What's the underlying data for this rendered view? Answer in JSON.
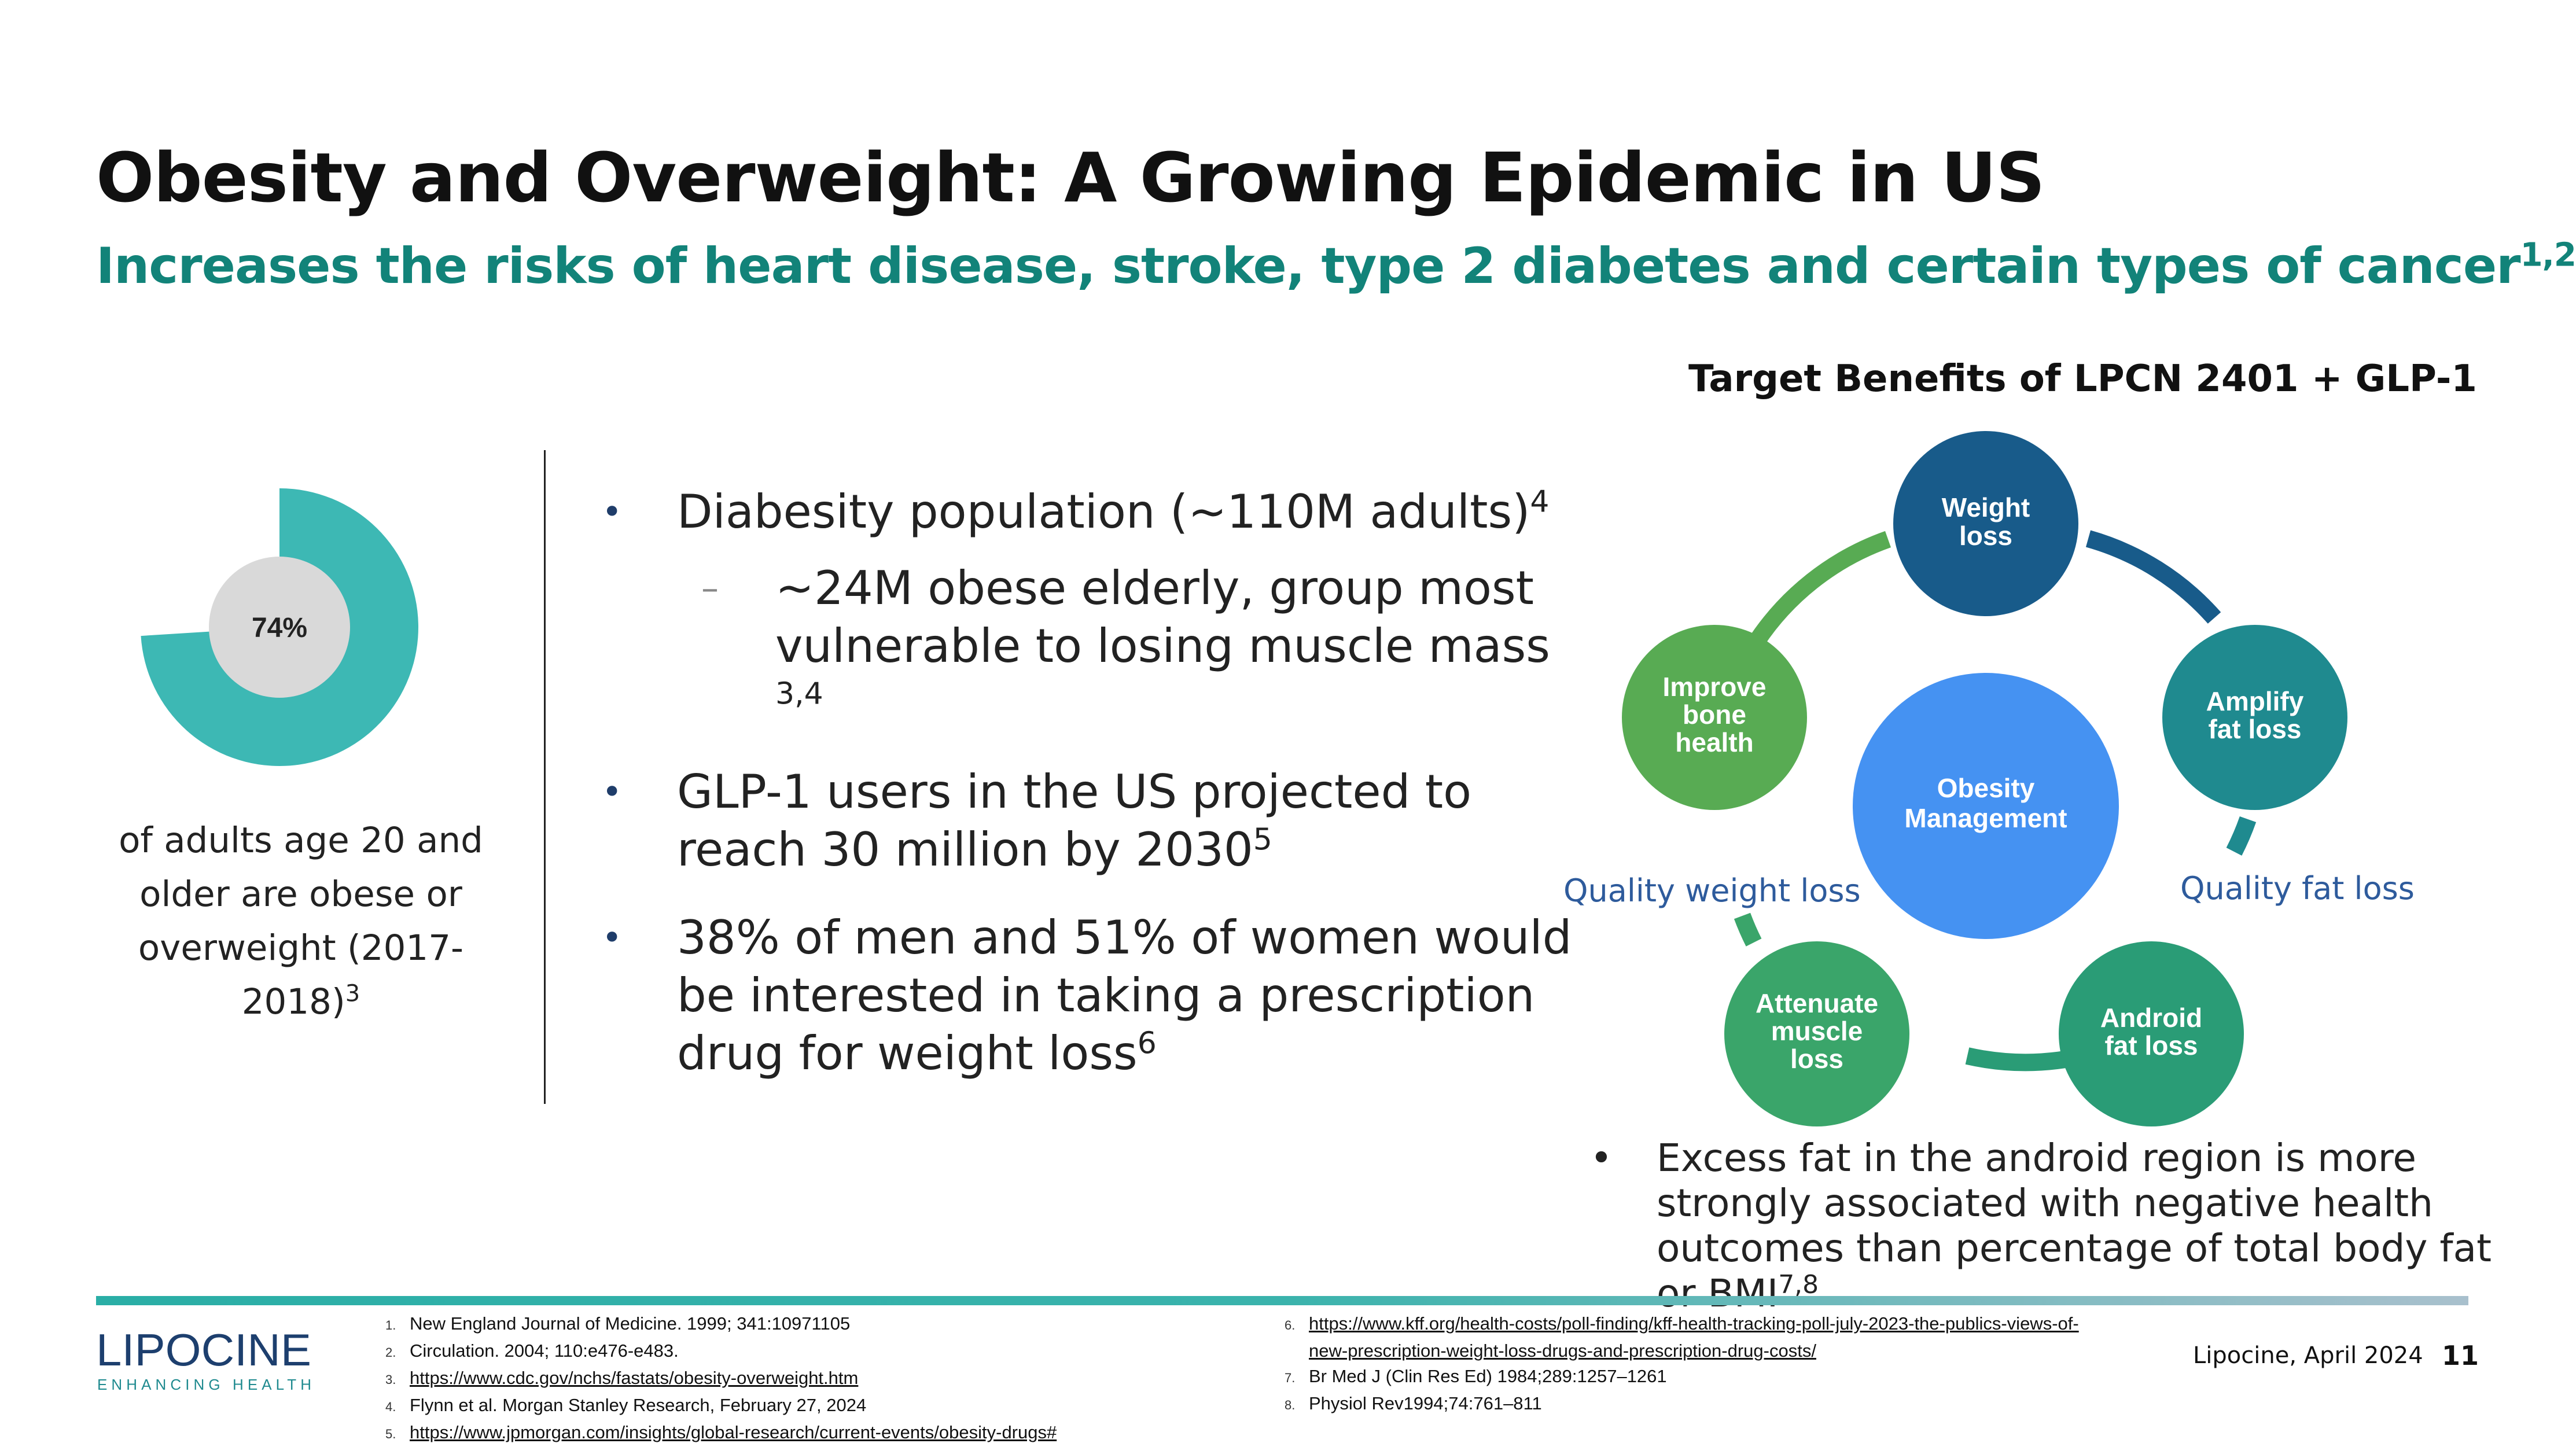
{
  "slide": {
    "title": "Obesity and Overweight: A Growing Epidemic in US",
    "subtitle": "Increases the risks of heart disease, stroke, type 2 diabetes and certain types of cancer",
    "subtitle_refs": "1,2"
  },
  "stat": {
    "percent_label": "74%",
    "percent_value": 74,
    "caption": "of adults age 20 and older are obese or overweight (2017-2018)",
    "caption_ref": "3",
    "colors": {
      "fill": "#3db8b4",
      "hole": "#d9d9d9"
    }
  },
  "bullets": {
    "b1": {
      "text": "Diabesity population (~110M adults)",
      "ref": "4"
    },
    "b1_sub": {
      "text": "~24M obese elderly, group most vulnerable to losing muscle mass ",
      "ref": "3,4"
    },
    "b2": {
      "text": "GLP-1 users in the US projected to reach 30 million by 2030",
      "ref": "5"
    },
    "b3": {
      "text": "38% of men and 51% of women would be interested in taking a prescription drug for weight loss",
      "ref": "6"
    }
  },
  "diagram": {
    "title": "Target Benefits of LPCN 2401 + GLP-1",
    "center": {
      "line1": "Obesity",
      "line2": "Management",
      "color": "#4592f2"
    },
    "nodes": {
      "weight": {
        "line1": "Weight",
        "line2": "loss",
        "color": "#185b8a"
      },
      "amplify": {
        "line1": "Amplify",
        "line2": "fat loss",
        "color": "#1f8a8f"
      },
      "android": {
        "line1": "Android",
        "line2": "fat loss",
        "color": "#2a9c76"
      },
      "attenuate": {
        "line1": "Attenuate",
        "line2": "muscle",
        "line3": "loss",
        "color": "#3aa56a"
      },
      "bone": {
        "line1": "Improve",
        "line2": "bone",
        "line3": "health",
        "color": "#58ab53"
      }
    },
    "quality_weight_loss": "Quality weight loss",
    "quality_fat_loss": "Quality fat loss",
    "excess_note": "Excess fat in the android region is more strongly associated with negative health outcomes than percentage of total body fat or BMI",
    "excess_ref": "7,8"
  },
  "references": {
    "left": [
      {
        "n": "1.",
        "text": "New England Journal of Medicine. 1999; 341:10971105"
      },
      {
        "n": "2.",
        "text": "Circulation. 2004; 110:e476-e483."
      },
      {
        "n": "3.",
        "text": "https://www.cdc.gov/nchs/fastats/obesity-overweight.htm"
      },
      {
        "n": "4.",
        "text": "Flynn et al. Morgan Stanley Research, February 27, 2024"
      },
      {
        "n": "5.",
        "text": "https://www.jpmorgan.com/insights/global-research/current-events/obesity-drugs#"
      }
    ],
    "right": [
      {
        "n": "6.",
        "text": "https://www.kff.org/health-costs/poll-finding/kff-health-tracking-poll-july-2023-the-publics-views-of-"
      },
      {
        "n": "",
        "text": "new-prescription-weight-loss-drugs-and-prescription-drug-costs/"
      },
      {
        "n": "7.",
        "text": "Br Med J (Clin Res Ed) 1984;289:1257–1261"
      },
      {
        "n": "8.",
        "text": "Physiol Rev1994;74:761–811"
      }
    ]
  },
  "footer": {
    "logo_text": "LIPOCINE",
    "logo_tagline": "ENHANCING HEALTH",
    "date": "Lipocine, April 2024",
    "page_number": "11"
  }
}
